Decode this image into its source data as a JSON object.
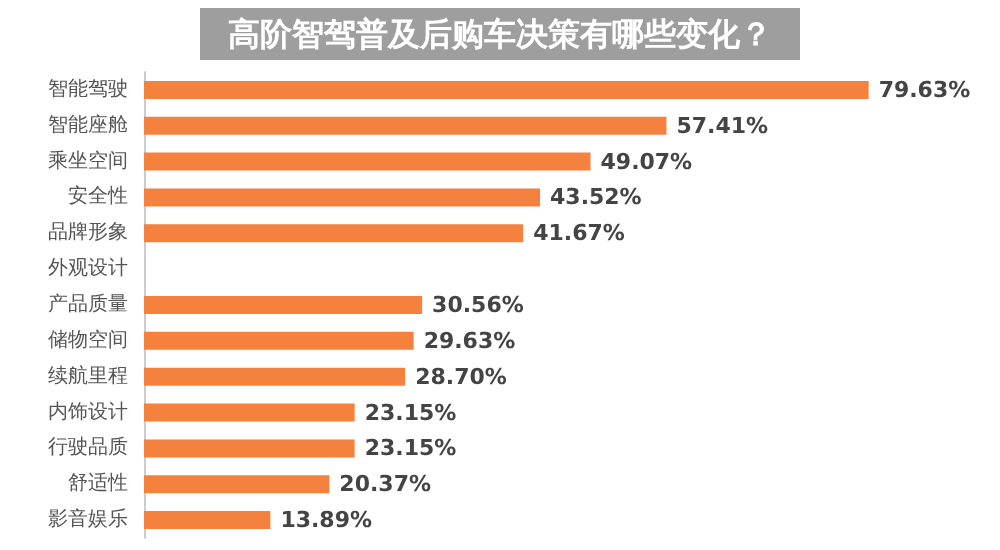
{
  "chart_data": {
    "type": "bar",
    "orientation": "horizontal",
    "title": "高阶智驾普及后购车决策有哪些变化？",
    "categories": [
      "智能驾驶",
      "智能座舱",
      "乘坐空间",
      "安全性",
      "品牌形象",
      "外观设计",
      "产品质量",
      "储物空间",
      "续航里程",
      "内饰设计",
      "行驶品质",
      "舒适性",
      "影音娱乐"
    ],
    "values": [
      79.63,
      57.41,
      49.07,
      43.52,
      41.67,
      null,
      30.56,
      29.63,
      28.7,
      23.15,
      23.15,
      20.37,
      13.89
    ],
    "value_labels": [
      "79.63%",
      "57.41%",
      "49.07%",
      "43.52%",
      "41.67%",
      null,
      "30.56%",
      "29.63%",
      "28.70%",
      "23.15%",
      "23.15%",
      "20.37%",
      "13.89%"
    ],
    "color": "#f5813f",
    "tick_labels": "y"
  }
}
